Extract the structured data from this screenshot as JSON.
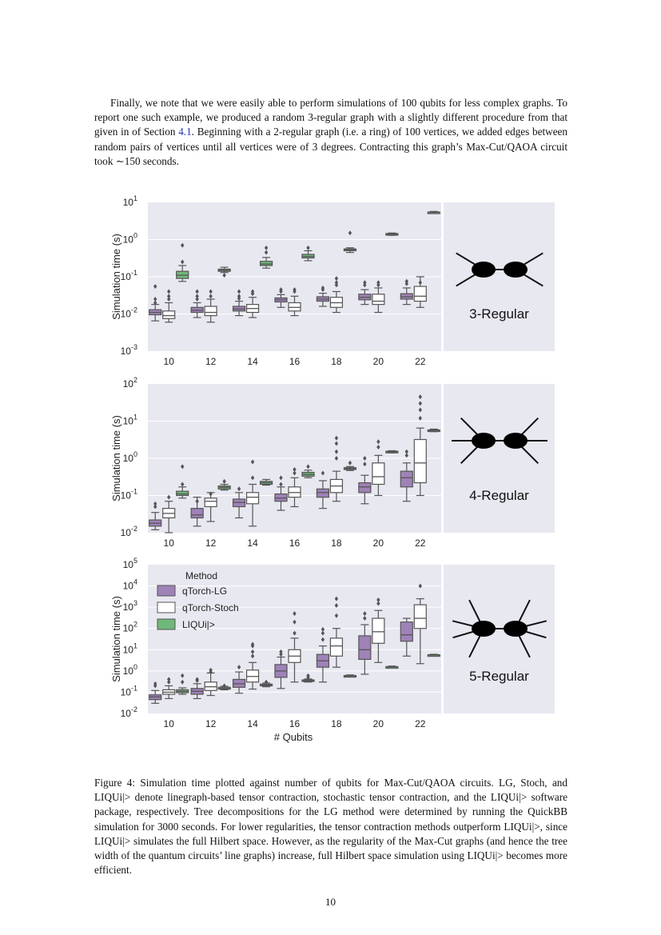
{
  "text": {
    "para_pre": "Finally, we note that we were easily able to perform simulations of 100 qubits for less complex graphs. To report one such example, we produced a random 3-regular graph with a slightly different procedure from that given in of Section ",
    "para_ref": "4.1",
    "para_post": ". Beginning with a 2-regular graph (i.e. a ring) of 100 vertices, we added edges between random pairs of vertices until all vertices were of 3 degrees. Contracting this graph’s Max-Cut/QAOA circuit took ∼150 seconds.",
    "caption": "Figure 4: Simulation time plotted against number of qubits for Max-Cut/QAOA circuits. LG, Stoch, and LIQUi|> denote linegraph-based tensor contraction, stochastic tensor contraction, and the LIQUi|> software package, respectively. Tree decompositions for the LG method were determined by running the QuickBB simulation for 3000 seconds. For lower regularities, the tensor contraction methods outperform LIQUi|>, since LIQUi|> simulates the full Hilbert space. However, as the regularity of the Max-Cut graphs (and hence the tree width of the quantum circuits’ line graphs) increase, full Hilbert space simulation using LIQUi|> becomes more efficient.",
    "page_number": "10"
  },
  "chart_data": {
    "type": "box",
    "xlabel": "# Qubits",
    "ylabel": "Simulation time (s)",
    "yscale": "log",
    "categories": [
      "10",
      "12",
      "14",
      "16",
      "18",
      "20",
      "22"
    ],
    "legend": {
      "title": "Method",
      "entries": [
        "qTorch-LG",
        "qTorch-Stoch",
        "LIQUi|>"
      ]
    },
    "colors": {
      "qTorch-LG": "#9f82b8",
      "qTorch-Stoch": "#ffffff",
      "LIQUi|>": "#6fb879",
      "panel_bg": "#e8e8f1",
      "median": "#555555"
    },
    "panels": [
      {
        "label": "3-Regular",
        "ylim_exp": [
          -3,
          1
        ],
        "series": [
          {
            "name": "qTorch-LG",
            "boxes": [
              [
                0.0065,
                0.0095,
                0.011,
                0.013,
                0.018
              ],
              [
                0.008,
                0.011,
                0.0125,
                0.015,
                0.02
              ],
              [
                0.009,
                0.012,
                0.0135,
                0.016,
                0.022
              ],
              [
                0.015,
                0.021,
                0.024,
                0.027,
                0.033
              ],
              [
                0.016,
                0.022,
                0.025,
                0.029,
                0.036
              ],
              [
                0.018,
                0.024,
                0.028,
                0.034,
                0.045
              ],
              [
                0.018,
                0.025,
                0.029,
                0.035,
                0.05
              ]
            ],
            "outliers": [
              [
                0.055,
                0.025,
                0.02
              ],
              [
                0.03,
                0.025,
                0.04
              ],
              [
                0.04,
                0.03,
                0.026
              ],
              [
                0.045,
                0.04
              ],
              [
                0.05,
                0.045
              ],
              [
                0.07,
                0.06
              ],
              [
                0.075,
                0.065
              ]
            ]
          },
          {
            "name": "qTorch-Stoch",
            "boxes": [
              [
                0.006,
                0.0075,
                0.009,
                0.012,
                0.02
              ],
              [
                0.006,
                0.009,
                0.011,
                0.016,
                0.025
              ],
              [
                0.008,
                0.011,
                0.014,
                0.018,
                0.028
              ],
              [
                0.009,
                0.012,
                0.015,
                0.02,
                0.03
              ],
              [
                0.011,
                0.015,
                0.02,
                0.028,
                0.04
              ],
              [
                0.011,
                0.018,
                0.022,
                0.034,
                0.05
              ],
              [
                0.015,
                0.022,
                0.03,
                0.055,
                0.1
              ]
            ],
            "outliers": [
              [
                0.03,
                0.025,
                0.04
              ],
              [
                0.04,
                0.03
              ],
              [
                0.04,
                0.035
              ],
              [
                0.045,
                0.04
              ],
              [
                0.09,
                0.07,
                0.06
              ],
              [
                0.07,
                0.06
              ],
              [
                0.07
              ]
            ]
          },
          {
            "name": "LIQUi|>",
            "boxes": [
              [
                0.075,
                0.09,
                0.11,
                0.14,
                0.2
              ],
              [
                0.13,
                0.14,
                0.15,
                0.16,
                0.18
              ],
              [
                0.17,
                0.2,
                0.22,
                0.26,
                0.33
              ],
              [
                0.27,
                0.32,
                0.35,
                0.4,
                0.5
              ],
              [
                0.45,
                0.5,
                0.53,
                0.56,
                0.6
              ],
              [
                1.3,
                1.35,
                1.4,
                1.45,
                1.5
              ],
              [
                5.1,
                5.3,
                5.4,
                5.5,
                5.7
              ]
            ],
            "outliers": [
              [
                0.7,
                0.25
              ],
              [
                0.11
              ],
              [
                0.6,
                0.45
              ],
              [
                0.6
              ],
              [
                1.5
              ],
              [],
              []
            ]
          }
        ]
      },
      {
        "label": "4-Regular",
        "ylim_exp": [
          -2,
          2
        ],
        "series": [
          {
            "name": "qTorch-LG",
            "boxes": [
              [
                0.012,
                0.015,
                0.018,
                0.022,
                0.035
              ],
              [
                0.015,
                0.025,
                0.03,
                0.045,
                0.09
              ],
              [
                0.025,
                0.05,
                0.065,
                0.08,
                0.12
              ],
              [
                0.04,
                0.07,
                0.085,
                0.11,
                0.17
              ],
              [
                0.045,
                0.09,
                0.12,
                0.15,
                0.25
              ],
              [
                0.06,
                0.12,
                0.17,
                0.22,
                0.35
              ],
              [
                0.07,
                0.17,
                0.3,
                0.45,
                0.75
              ]
            ],
            "outliers": [
              [
                0.06,
                0.05
              ],
              [
                0.07
              ],
              [
                0.15
              ],
              [
                0.2,
                0.3
              ],
              [
                0.4
              ],
              [
                1.0,
                0.7
              ],
              [
                1.5,
                1.2
              ]
            ]
          },
          {
            "name": "qTorch-Stoch",
            "boxes": [
              [
                0.01,
                0.025,
                0.033,
                0.045,
                0.07
              ],
              [
                0.02,
                0.05,
                0.07,
                0.085,
                0.12
              ],
              [
                0.015,
                0.06,
                0.09,
                0.12,
                0.2
              ],
              [
                0.05,
                0.09,
                0.12,
                0.17,
                0.3
              ],
              [
                0.07,
                0.12,
                0.18,
                0.27,
                0.45
              ],
              [
                0.1,
                0.2,
                0.32,
                0.75,
                1.2
              ],
              [
                0.1,
                0.22,
                0.75,
                3.2,
                6.5
              ]
            ],
            "outliers": [
              [
                0.09
              ],
              [
                0.11
              ],
              [
                0.3,
                0.8
              ],
              [
                0.4,
                0.5
              ],
              [
                1.0,
                1.5,
                2.5,
                3.5
              ],
              [
                2.0,
                2.8
              ],
              [
                12,
                20,
                30,
                45
              ]
            ]
          },
          {
            "name": "LIQUi|>",
            "boxes": [
              [
                0.085,
                0.1,
                0.11,
                0.13,
                0.17
              ],
              [
                0.14,
                0.15,
                0.165,
                0.18,
                0.2
              ],
              [
                0.19,
                0.2,
                0.22,
                0.24,
                0.27
              ],
              [
                0.3,
                0.33,
                0.37,
                0.42,
                0.48
              ],
              [
                0.47,
                0.5,
                0.53,
                0.56,
                0.6
              ],
              [
                1.4,
                1.45,
                1.5,
                1.55,
                1.6
              ],
              [
                5.2,
                5.4,
                5.6,
                5.8,
                6.1
              ]
            ],
            "outliers": [
              [
                0.6,
                0.2
              ],
              [
                0.24
              ],
              [],
              [
                0.6
              ],
              [
                0.75
              ],
              [],
              []
            ]
          }
        ]
      },
      {
        "label": "5-Regular",
        "ylim_exp": [
          -2,
          5
        ],
        "series": [
          {
            "name": "qTorch-LG",
            "boxes": [
              [
                0.03,
                0.045,
                0.06,
                0.075,
                0.12
              ],
              [
                0.05,
                0.08,
                0.11,
                0.15,
                0.25
              ],
              [
                0.09,
                0.17,
                0.25,
                0.4,
                0.9
              ],
              [
                0.15,
                0.5,
                1.0,
                2.0,
                4.5
              ],
              [
                0.3,
                1.5,
                3.0,
                6.0,
                15
              ],
              [
                0.7,
                3.5,
                10,
                45,
                150
              ],
              [
                5,
                25,
                50,
                200,
                300
              ]
            ],
            "outliers": [
              [
                0.25,
                0.2
              ],
              [
                0.4,
                0.35
              ],
              [
                1.5
              ],
              [
                6,
                8
              ],
              [
                30,
                60,
                90
              ],
              [
                300,
                500
              ],
              []
            ]
          },
          {
            "name": "qTorch-Stoch",
            "boxes": [
              [
                0.05,
                0.08,
                0.1,
                0.13,
                0.2
              ],
              [
                0.07,
                0.12,
                0.18,
                0.3,
                0.8
              ],
              [
                0.14,
                0.3,
                0.55,
                1.1,
                2.5
              ],
              [
                0.3,
                2.5,
                5,
                10,
                35
              ],
              [
                1.5,
                5,
                15,
                35,
                100
              ],
              [
                2.5,
                20,
                70,
                300,
                700
              ],
              [
                2.2,
                100,
                300,
                1300,
                2500
              ]
            ],
            "outliers": [
              [
                0.4,
                0.3
              ],
              [
                1.1,
                0.9
              ],
              [
                5,
                8,
                15,
                18
              ],
              [
                60,
                200,
                500
              ],
              [
                400,
                1200,
                2500
              ],
              [
                1500,
                2200
              ],
              [
                10000
              ]
            ]
          },
          {
            "name": "LIQUi|>",
            "boxes": [
              [
                0.08,
                0.095,
                0.11,
                0.13,
                0.16
              ],
              [
                0.13,
                0.14,
                0.15,
                0.17,
                0.19
              ],
              [
                0.18,
                0.2,
                0.22,
                0.24,
                0.27
              ],
              [
                0.3,
                0.33,
                0.35,
                0.38,
                0.42
              ],
              [
                0.52,
                0.55,
                0.58,
                0.61,
                0.65
              ],
              [
                1.45,
                1.5,
                1.55,
                1.6,
                1.7
              ],
              [
                5.2,
                5.4,
                5.6,
                5.8,
                6.1
              ]
            ],
            "outliers": [
              [
                0.6,
                0.3
              ],
              [
                0.2
              ],
              [
                0.3
              ],
              [
                0.6,
                0.5
              ],
              [],
              [],
              []
            ]
          }
        ]
      }
    ]
  }
}
